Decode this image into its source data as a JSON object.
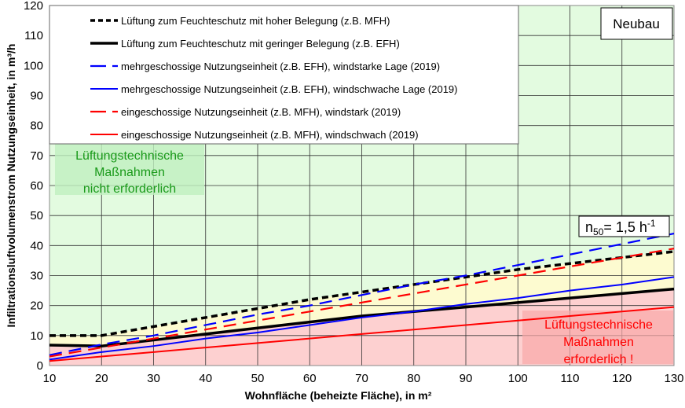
{
  "chart_data": {
    "type": "line",
    "title": "",
    "xlabel": "Wohnfläche (beheizte Fläche), in m²",
    "ylabel": "Infiltrationsluftvolumenstrom Nutzungseinheit, in m³/h",
    "xlim": [
      10,
      130
    ],
    "ylim": [
      0,
      120
    ],
    "xticks": [
      10,
      20,
      30,
      40,
      50,
      60,
      70,
      80,
      90,
      100,
      110,
      120,
      130
    ],
    "yticks": [
      0,
      10,
      20,
      30,
      40,
      50,
      60,
      70,
      80,
      90,
      100,
      110,
      120
    ],
    "grid": true,
    "legend_placement": "top-left",
    "x": [
      10,
      20,
      30,
      40,
      50,
      60,
      70,
      80,
      90,
      100,
      110,
      120,
      130
    ],
    "series": [
      {
        "name": "Lüftung zum Feuchteschutz mit hoher Belegung (z.B. MFH)",
        "color": "#000000",
        "style": "dashed-thick",
        "values": [
          10,
          10,
          13,
          16,
          19,
          22,
          24.5,
          27,
          29.5,
          32,
          34,
          36,
          38
        ]
      },
      {
        "name": "Lüftung zum Feuchteschutz mit geringer Belegung (z.B. EFH)",
        "color": "#000000",
        "style": "solid-thick",
        "values": [
          6.8,
          6.5,
          8.5,
          10.5,
          12.5,
          14.5,
          16.5,
          18,
          19.5,
          21,
          22.5,
          24,
          25.5
        ]
      },
      {
        "name": "mehrgeschossige Nutzungseinheit (z.B. EFH), windstarke Lage (2019)",
        "color": "#0000ff",
        "style": "dashed",
        "values": [
          3.5,
          7,
          10,
          13.5,
          17,
          20,
          23.5,
          27,
          30,
          33.5,
          37,
          40.5,
          44
        ]
      },
      {
        "name": "mehrgeschossige Nutzungseinheit (z.B. EFH), windschwache Lage (2019)",
        "color": "#0000ff",
        "style": "solid",
        "values": [
          2,
          4.5,
          6.5,
          9,
          11,
          13.5,
          16,
          18,
          20.5,
          22.5,
          25,
          27,
          29.5
        ]
      },
      {
        "name": "eingeschossige Nutzungseinheit (z.B. MFH), windstark (2019)",
        "color": "#ff0000",
        "style": "dashed",
        "values": [
          3,
          6,
          9,
          12,
          15,
          18,
          21,
          24,
          27,
          30,
          33,
          36,
          39
        ]
      },
      {
        "name": "eingeschossige Nutzungseinheit (z.B. MFH), windschwach (2019)",
        "color": "#ff0000",
        "style": "solid",
        "values": [
          1.5,
          3,
          4.5,
          6,
          7.5,
          9,
          10.5,
          12,
          13.5,
          15,
          16.5,
          18,
          19.5
        ]
      }
    ],
    "annotations": {
      "neubau": "Neubau",
      "n50_prefix": "n",
      "n50_sub": "50",
      "n50_mid": "= 1,5 h",
      "n50_sup": "-1",
      "green_box": [
        "Lüftungstechnische",
        "Maßnahmen",
        "nicht erforderlich"
      ],
      "red_box": [
        "Lüftungstechnische",
        "Maßnahmen",
        "erforderlich !"
      ]
    },
    "colors": {
      "green_zone": "#e3fbe0",
      "yellow_zone": "#fdfbd0",
      "red_zone": "#fdd0d0",
      "green_text": "#1a9a1a",
      "red_text": "#ff0000"
    }
  }
}
